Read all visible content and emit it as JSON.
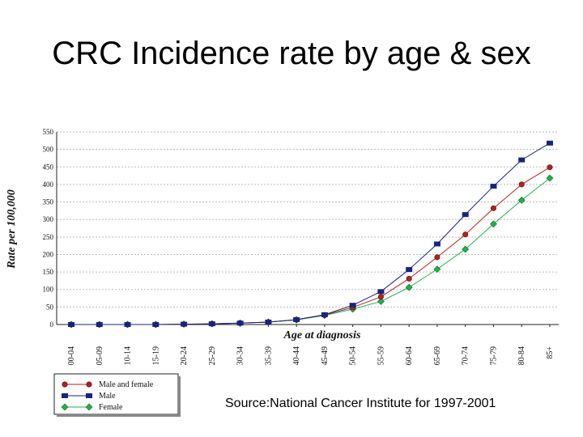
{
  "slide": {
    "title": "CRC Incidence rate by age & sex",
    "source": "Source:National Cancer Institute for 1997-2001"
  },
  "colors": {
    "combined": "#b22222",
    "male": "#1a237e",
    "female": "#22b14c"
  },
  "chart_data": {
    "type": "line",
    "title": "",
    "xlabel": "Age at diagnosis",
    "ylabel": "Rate per 100,000",
    "ylim": [
      0,
      550
    ],
    "yticks": [
      0,
      50,
      100,
      150,
      200,
      250,
      300,
      350,
      400,
      450,
      500,
      550
    ],
    "categories": [
      "00-04",
      "05-09",
      "10-14",
      "15-19",
      "20-24",
      "25-29",
      "30-34",
      "35-39",
      "40-44",
      "45-49",
      "50-54",
      "55-59",
      "60-64",
      "65-69",
      "70-74",
      "75-79",
      "80-84",
      "85+"
    ],
    "grid": true,
    "legend_position": "bottom-left",
    "series": [
      {
        "name": "Male and female",
        "values": [
          0,
          0,
          0,
          0,
          1,
          2,
          4,
          7,
          14,
          27,
          49,
          79,
          131,
          192,
          257,
          332,
          400,
          449
        ]
      },
      {
        "name": "Male",
        "values": [
          0,
          0,
          0,
          0,
          1,
          2,
          4,
          7,
          14,
          28,
          55,
          94,
          157,
          230,
          314,
          395,
          470,
          518
        ]
      },
      {
        "name": "Female",
        "values": [
          0,
          0,
          0,
          0,
          1,
          2,
          4,
          7,
          13,
          26,
          44,
          66,
          106,
          158,
          215,
          287,
          355,
          418
        ]
      }
    ]
  }
}
